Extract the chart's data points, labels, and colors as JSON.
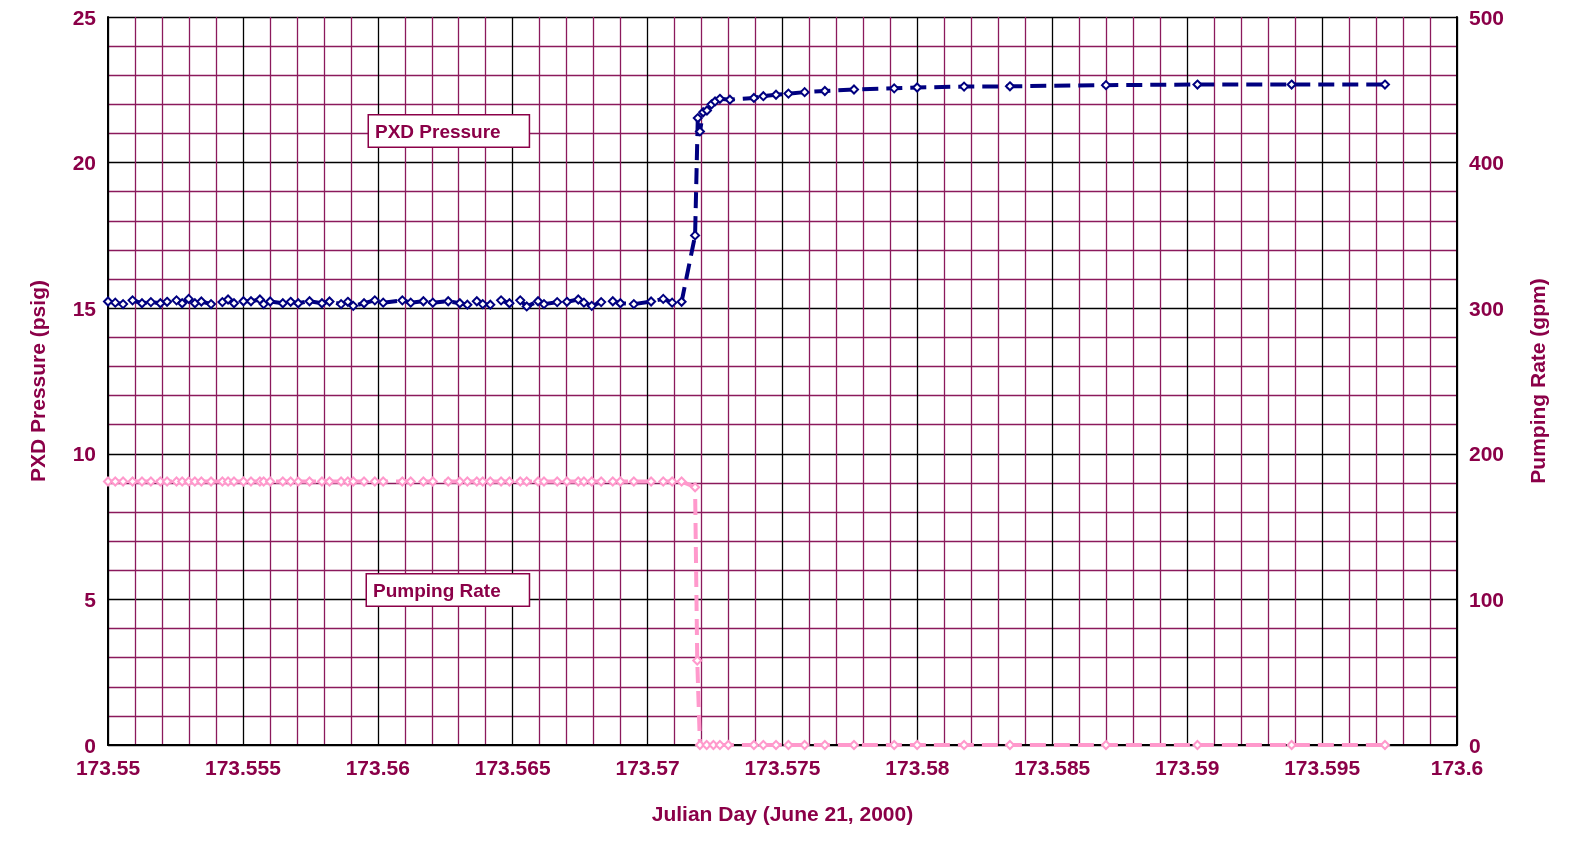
{
  "chart_data": {
    "type": "line",
    "xlabel": "Julian Day (June 21, 2000)",
    "ylabel": "PXD Pressure (psig)",
    "y2label": "Pumping Rate (gpm)",
    "xlim": [
      173.55,
      173.6
    ],
    "xticks": [
      173.55,
      {
        "value": 173.551,
        "label": null
      },
      {
        "value": 173.552,
        "label": null
      },
      {
        "value": 173.553,
        "label": null
      },
      {
        "value": 173.554,
        "label": null
      },
      173.555,
      {
        "value": 173.556,
        "label": null
      },
      {
        "value": 173.557,
        "label": null
      },
      {
        "value": 173.558,
        "label": null
      },
      {
        "value": 173.559,
        "label": null
      },
      173.56,
      {
        "value": 173.561,
        "label": null
      },
      {
        "value": 173.562,
        "label": null
      },
      {
        "value": 173.563,
        "label": null
      },
      {
        "value": 173.564,
        "label": null
      },
      173.565,
      {
        "value": 173.566,
        "label": null
      },
      {
        "value": 173.567,
        "label": null
      },
      {
        "value": 173.568,
        "label": null
      },
      {
        "value": 173.569,
        "label": null
      },
      173.57,
      {
        "value": 173.571,
        "label": null
      },
      {
        "value": 173.572,
        "label": null
      },
      {
        "value": 173.573,
        "label": null
      },
      {
        "value": 173.574,
        "label": null
      },
      173.575,
      {
        "value": 173.576,
        "label": null
      },
      {
        "value": 173.577,
        "label": null
      },
      {
        "value": 173.578,
        "label": null
      },
      {
        "value": 173.579,
        "label": null
      },
      173.58,
      {
        "value": 173.581,
        "label": null
      },
      {
        "value": 173.582,
        "label": null
      },
      {
        "value": 173.583,
        "label": null
      },
      {
        "value": 173.584,
        "label": null
      },
      173.585,
      {
        "value": 173.586,
        "label": null
      },
      {
        "value": 173.587,
        "label": null
      },
      {
        "value": 173.588,
        "label": null
      },
      {
        "value": 173.589,
        "label": null
      },
      173.59,
      {
        "value": 173.591,
        "label": null
      },
      {
        "value": 173.592,
        "label": null
      },
      {
        "value": 173.593,
        "label": null
      },
      {
        "value": 173.594,
        "label": null
      },
      173.595,
      {
        "value": 173.596,
        "label": null
      },
      {
        "value": 173.597,
        "label": null
      },
      {
        "value": 173.598,
        "label": null
      },
      {
        "value": 173.599,
        "label": null
      },
      173.6
    ],
    "ylim": [
      0,
      25
    ],
    "yticks": [
      0,
      {
        "value": 1,
        "label": null
      },
      {
        "value": 2,
        "label": null
      },
      {
        "value": 3,
        "label": null
      },
      {
        "value": 4,
        "label": null
      },
      5,
      {
        "value": 6,
        "label": null
      },
      {
        "value": 7,
        "label": null
      },
      {
        "value": 8,
        "label": null
      },
      {
        "value": 9,
        "label": null
      },
      10,
      {
        "value": 11,
        "label": null
      },
      {
        "value": 12,
        "label": null
      },
      {
        "value": 13,
        "label": null
      },
      {
        "value": 14,
        "label": null
      },
      15,
      {
        "value": 16,
        "label": null
      },
      {
        "value": 17,
        "label": null
      },
      {
        "value": 18,
        "label": null
      },
      {
        "value": 19,
        "label": null
      },
      20,
      {
        "value": 21,
        "label": null
      },
      {
        "value": 22,
        "label": null
      },
      {
        "value": 23,
        "label": null
      },
      {
        "value": 24,
        "label": null
      },
      25
    ],
    "y2lim": [
      0,
      500
    ],
    "y2ticks": [
      0,
      100,
      200,
      300,
      400,
      500
    ],
    "grid": true,
    "annotations": [
      "PXD Pressure",
      "Pumping Rate"
    ],
    "marker": "diamond",
    "line_style": "dashed",
    "series": [
      {
        "color": "#000080",
        "axis": "y",
        "x": [
          173.55,
          173.55027,
          173.55056,
          173.55091,
          173.55126,
          173.55159,
          173.55194,
          173.55219,
          173.55254,
          173.55275,
          173.55299,
          173.55322,
          173.55346,
          173.55382,
          173.55424,
          173.55445,
          173.55467,
          173.55502,
          173.5553,
          173.55563,
          173.55577,
          173.55601,
          173.55648,
          173.55677,
          173.55705,
          173.55747,
          173.55793,
          173.55821,
          173.55864,
          173.55889,
          173.55909,
          173.55949,
          173.55989,
          173.5602,
          173.56091,
          173.56122,
          173.56169,
          173.56204,
          173.56261,
          173.56304,
          173.56332,
          173.56367,
          173.56389,
          173.56417,
          173.56457,
          173.56488,
          173.56528,
          173.56552,
          173.56594,
          173.56616,
          173.56665,
          173.56701,
          173.56743,
          173.56764,
          173.56793,
          173.56828,
          173.56871,
          173.56899,
          173.56949,
          173.57013,
          173.57058,
          173.57091,
          173.57126,
          173.57176,
          173.57186,
          173.57194,
          173.57206,
          173.5722,
          173.57237,
          173.5725,
          173.57268,
          173.57305,
          173.57394,
          173.57429,
          173.57476,
          173.57522,
          173.57582,
          173.57657,
          173.57765,
          173.57914,
          173.57999,
          173.58173,
          173.58343,
          173.58699,
          173.59038,
          173.59387,
          173.59733
        ],
        "values": [
          15.23,
          15.19,
          15.14,
          15.27,
          15.17,
          15.21,
          15.17,
          15.22,
          15.27,
          15.17,
          15.32,
          15.17,
          15.23,
          15.14,
          15.21,
          15.3,
          15.17,
          15.24,
          15.24,
          15.3,
          15.14,
          15.23,
          15.17,
          15.22,
          15.17,
          15.24,
          15.17,
          15.23,
          15.14,
          15.22,
          15.08,
          15.17,
          15.27,
          15.19,
          15.27,
          15.19,
          15.24,
          15.19,
          15.24,
          15.17,
          15.12,
          15.24,
          15.14,
          15.12,
          15.27,
          15.17,
          15.27,
          15.06,
          15.24,
          15.14,
          15.21,
          15.22,
          15.3,
          15.19,
          15.08,
          15.21,
          15.24,
          15.17,
          15.14,
          15.23,
          15.32,
          15.19,
          15.22,
          17.5,
          21.53,
          21.07,
          21.73,
          21.79,
          22.0,
          22.1,
          22.19,
          22.16,
          22.22,
          22.28,
          22.33,
          22.37,
          22.42,
          22.46,
          22.51,
          22.55,
          22.58,
          22.61,
          22.62,
          22.66,
          22.68,
          22.68,
          22.68
        ]
      },
      {
        "color": "#ff99cc",
        "axis": "y2",
        "x": [
          173.55,
          173.55027,
          173.55056,
          173.55091,
          173.55126,
          173.55159,
          173.55194,
          173.55219,
          173.55254,
          173.55275,
          173.55299,
          173.55322,
          173.55346,
          173.55382,
          173.55424,
          173.55445,
          173.55467,
          173.55502,
          173.5553,
          173.55563,
          173.55577,
          173.55601,
          173.55648,
          173.55677,
          173.55705,
          173.55747,
          173.55793,
          173.55821,
          173.55864,
          173.55889,
          173.55909,
          173.55949,
          173.55989,
          173.5602,
          173.56091,
          173.56122,
          173.56169,
          173.56204,
          173.56261,
          173.56304,
          173.56332,
          173.56367,
          173.56389,
          173.56417,
          173.56457,
          173.56488,
          173.56528,
          173.56552,
          173.56594,
          173.56616,
          173.56665,
          173.56701,
          173.56743,
          173.56764,
          173.56793,
          173.56828,
          173.56871,
          173.56899,
          173.56949,
          173.57013,
          173.57058,
          173.57091,
          173.57126,
          173.57176,
          173.57184,
          173.57194,
          173.57219,
          173.57244,
          173.57268,
          173.57299,
          173.57394,
          173.57429,
          173.57476,
          173.57522,
          173.57582,
          173.57657,
          173.57765,
          173.57914,
          173.57999,
          173.58173,
          173.58343,
          173.58699,
          173.59038,
          173.59387,
          173.59733
        ],
        "values": [
          181,
          181,
          181,
          181,
          181,
          181,
          181,
          181,
          181,
          181,
          181,
          181,
          181,
          181,
          181,
          181,
          181,
          181,
          181,
          181,
          181,
          181,
          181,
          181,
          181,
          181,
          181,
          181,
          181,
          181,
          181,
          181,
          181,
          181,
          181,
          181,
          181,
          181,
          181,
          181,
          181,
          181,
          181,
          181,
          181,
          181,
          181,
          181,
          181,
          181,
          181,
          181,
          181,
          181,
          181,
          181,
          181,
          181,
          181,
          181,
          181,
          181,
          181,
          177,
          58,
          0,
          0,
          0,
          0,
          0,
          0,
          0,
          0,
          0,
          0,
          0,
          0,
          0,
          0,
          0,
          0,
          0,
          0,
          0,
          0
        ]
      }
    ]
  }
}
